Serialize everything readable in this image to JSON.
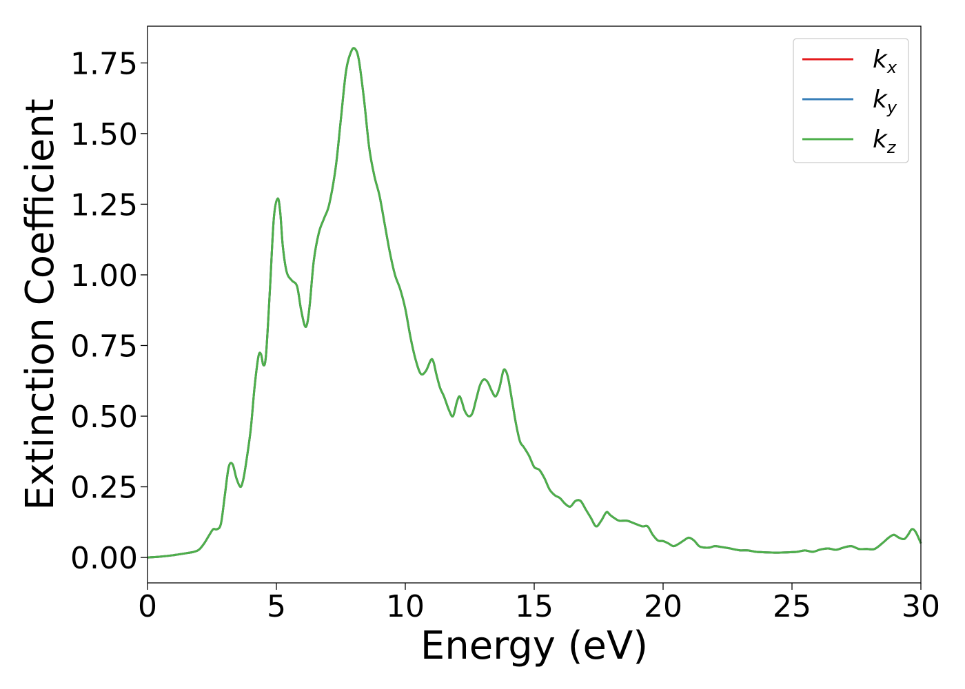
{
  "chart_data": {
    "type": "line",
    "title": "",
    "xlabel": "Energy (eV)",
    "ylabel": "Extinction Coefficient",
    "xlim": [
      0,
      30
    ],
    "ylim": [
      -0.09,
      1.88
    ],
    "xticks": [
      0,
      5,
      10,
      15,
      20,
      25,
      30
    ],
    "xtick_labels": [
      "0",
      "5",
      "10",
      "15",
      "20",
      "25",
      "30"
    ],
    "yticks": [
      0.0,
      0.25,
      0.5,
      0.75,
      1.0,
      1.25,
      1.5,
      1.75
    ],
    "ytick_labels": [
      "0.00",
      "0.25",
      "0.50",
      "0.75",
      "1.00",
      "1.25",
      "1.50",
      "1.75"
    ],
    "grid": false,
    "legend_position": "top-right",
    "x": [
      0,
      0.5,
      1.0,
      1.5,
      1.8,
      2.0,
      2.2,
      2.4,
      2.55,
      2.7,
      2.85,
      3.0,
      3.15,
      3.3,
      3.45,
      3.6,
      3.7,
      3.8,
      4.0,
      4.15,
      4.3,
      4.4,
      4.5,
      4.6,
      4.75,
      4.9,
      5.05,
      5.15,
      5.25,
      5.4,
      5.6,
      5.8,
      5.95,
      6.1,
      6.2,
      6.3,
      6.45,
      6.65,
      6.85,
      7.05,
      7.3,
      7.5,
      7.7,
      7.9,
      8.05,
      8.2,
      8.4,
      8.6,
      8.8,
      9.0,
      9.2,
      9.4,
      9.6,
      9.8,
      10.0,
      10.2,
      10.4,
      10.6,
      10.8,
      11.0,
      11.1,
      11.2,
      11.35,
      11.5,
      11.7,
      11.85,
      12.0,
      12.1,
      12.2,
      12.3,
      12.45,
      12.6,
      12.75,
      12.9,
      13.05,
      13.2,
      13.35,
      13.5,
      13.65,
      13.8,
      13.9,
      14.0,
      14.15,
      14.3,
      14.45,
      14.6,
      14.8,
      15.0,
      15.2,
      15.4,
      15.6,
      15.8,
      16.0,
      16.2,
      16.4,
      16.6,
      16.8,
      17.0,
      17.2,
      17.4,
      17.6,
      17.8,
      17.95,
      18.1,
      18.3,
      18.6,
      18.9,
      19.2,
      19.4,
      19.6,
      19.8,
      20.0,
      20.2,
      20.4,
      20.6,
      20.8,
      21.0,
      21.2,
      21.4,
      21.6,
      21.8,
      22.0,
      22.2,
      22.4,
      22.6,
      22.8,
      23.0,
      23.3,
      23.6,
      24.0,
      24.4,
      24.8,
      25.2,
      25.5,
      25.8,
      26.1,
      26.4,
      26.7,
      27.0,
      27.3,
      27.6,
      27.9,
      28.2,
      28.5,
      28.75,
      28.95,
      29.15,
      29.35,
      29.5,
      29.65,
      29.8,
      30.0
    ],
    "series": [
      {
        "name": "k_x",
        "label_base": "k",
        "label_sub": "x",
        "color": "#e41a1c"
      },
      {
        "name": "k_y",
        "label_base": "k",
        "label_sub": "y",
        "color": "#377eb8"
      },
      {
        "name": "k_z",
        "label_base": "k",
        "label_sub": "z",
        "color": "#4daf4a"
      }
    ],
    "y": [
      0.0,
      0.003,
      0.008,
      0.015,
      0.02,
      0.028,
      0.05,
      0.08,
      0.1,
      0.1,
      0.12,
      0.22,
      0.32,
      0.33,
      0.28,
      0.25,
      0.27,
      0.32,
      0.45,
      0.6,
      0.71,
      0.72,
      0.68,
      0.72,
      0.95,
      1.2,
      1.27,
      1.22,
      1.1,
      1.01,
      0.98,
      0.96,
      0.88,
      0.82,
      0.83,
      0.9,
      1.05,
      1.15,
      1.2,
      1.25,
      1.38,
      1.55,
      1.72,
      1.79,
      1.8,
      1.76,
      1.62,
      1.45,
      1.35,
      1.28,
      1.18,
      1.08,
      1.0,
      0.95,
      0.88,
      0.78,
      0.7,
      0.65,
      0.66,
      0.7,
      0.69,
      0.65,
      0.6,
      0.57,
      0.52,
      0.5,
      0.55,
      0.57,
      0.55,
      0.52,
      0.5,
      0.51,
      0.56,
      0.61,
      0.63,
      0.62,
      0.59,
      0.57,
      0.6,
      0.66,
      0.66,
      0.63,
      0.55,
      0.47,
      0.41,
      0.39,
      0.36,
      0.32,
      0.31,
      0.28,
      0.24,
      0.22,
      0.21,
      0.19,
      0.18,
      0.2,
      0.2,
      0.17,
      0.14,
      0.11,
      0.13,
      0.16,
      0.15,
      0.14,
      0.13,
      0.13,
      0.12,
      0.11,
      0.11,
      0.08,
      0.06,
      0.058,
      0.05,
      0.04,
      0.048,
      0.06,
      0.07,
      0.06,
      0.04,
      0.035,
      0.035,
      0.04,
      0.038,
      0.035,
      0.032,
      0.028,
      0.025,
      0.025,
      0.02,
      0.018,
      0.017,
      0.018,
      0.02,
      0.025,
      0.02,
      0.028,
      0.032,
      0.027,
      0.035,
      0.04,
      0.03,
      0.03,
      0.03,
      0.05,
      0.07,
      0.08,
      0.07,
      0.065,
      0.08,
      0.1,
      0.09,
      0.05
    ]
  }
}
